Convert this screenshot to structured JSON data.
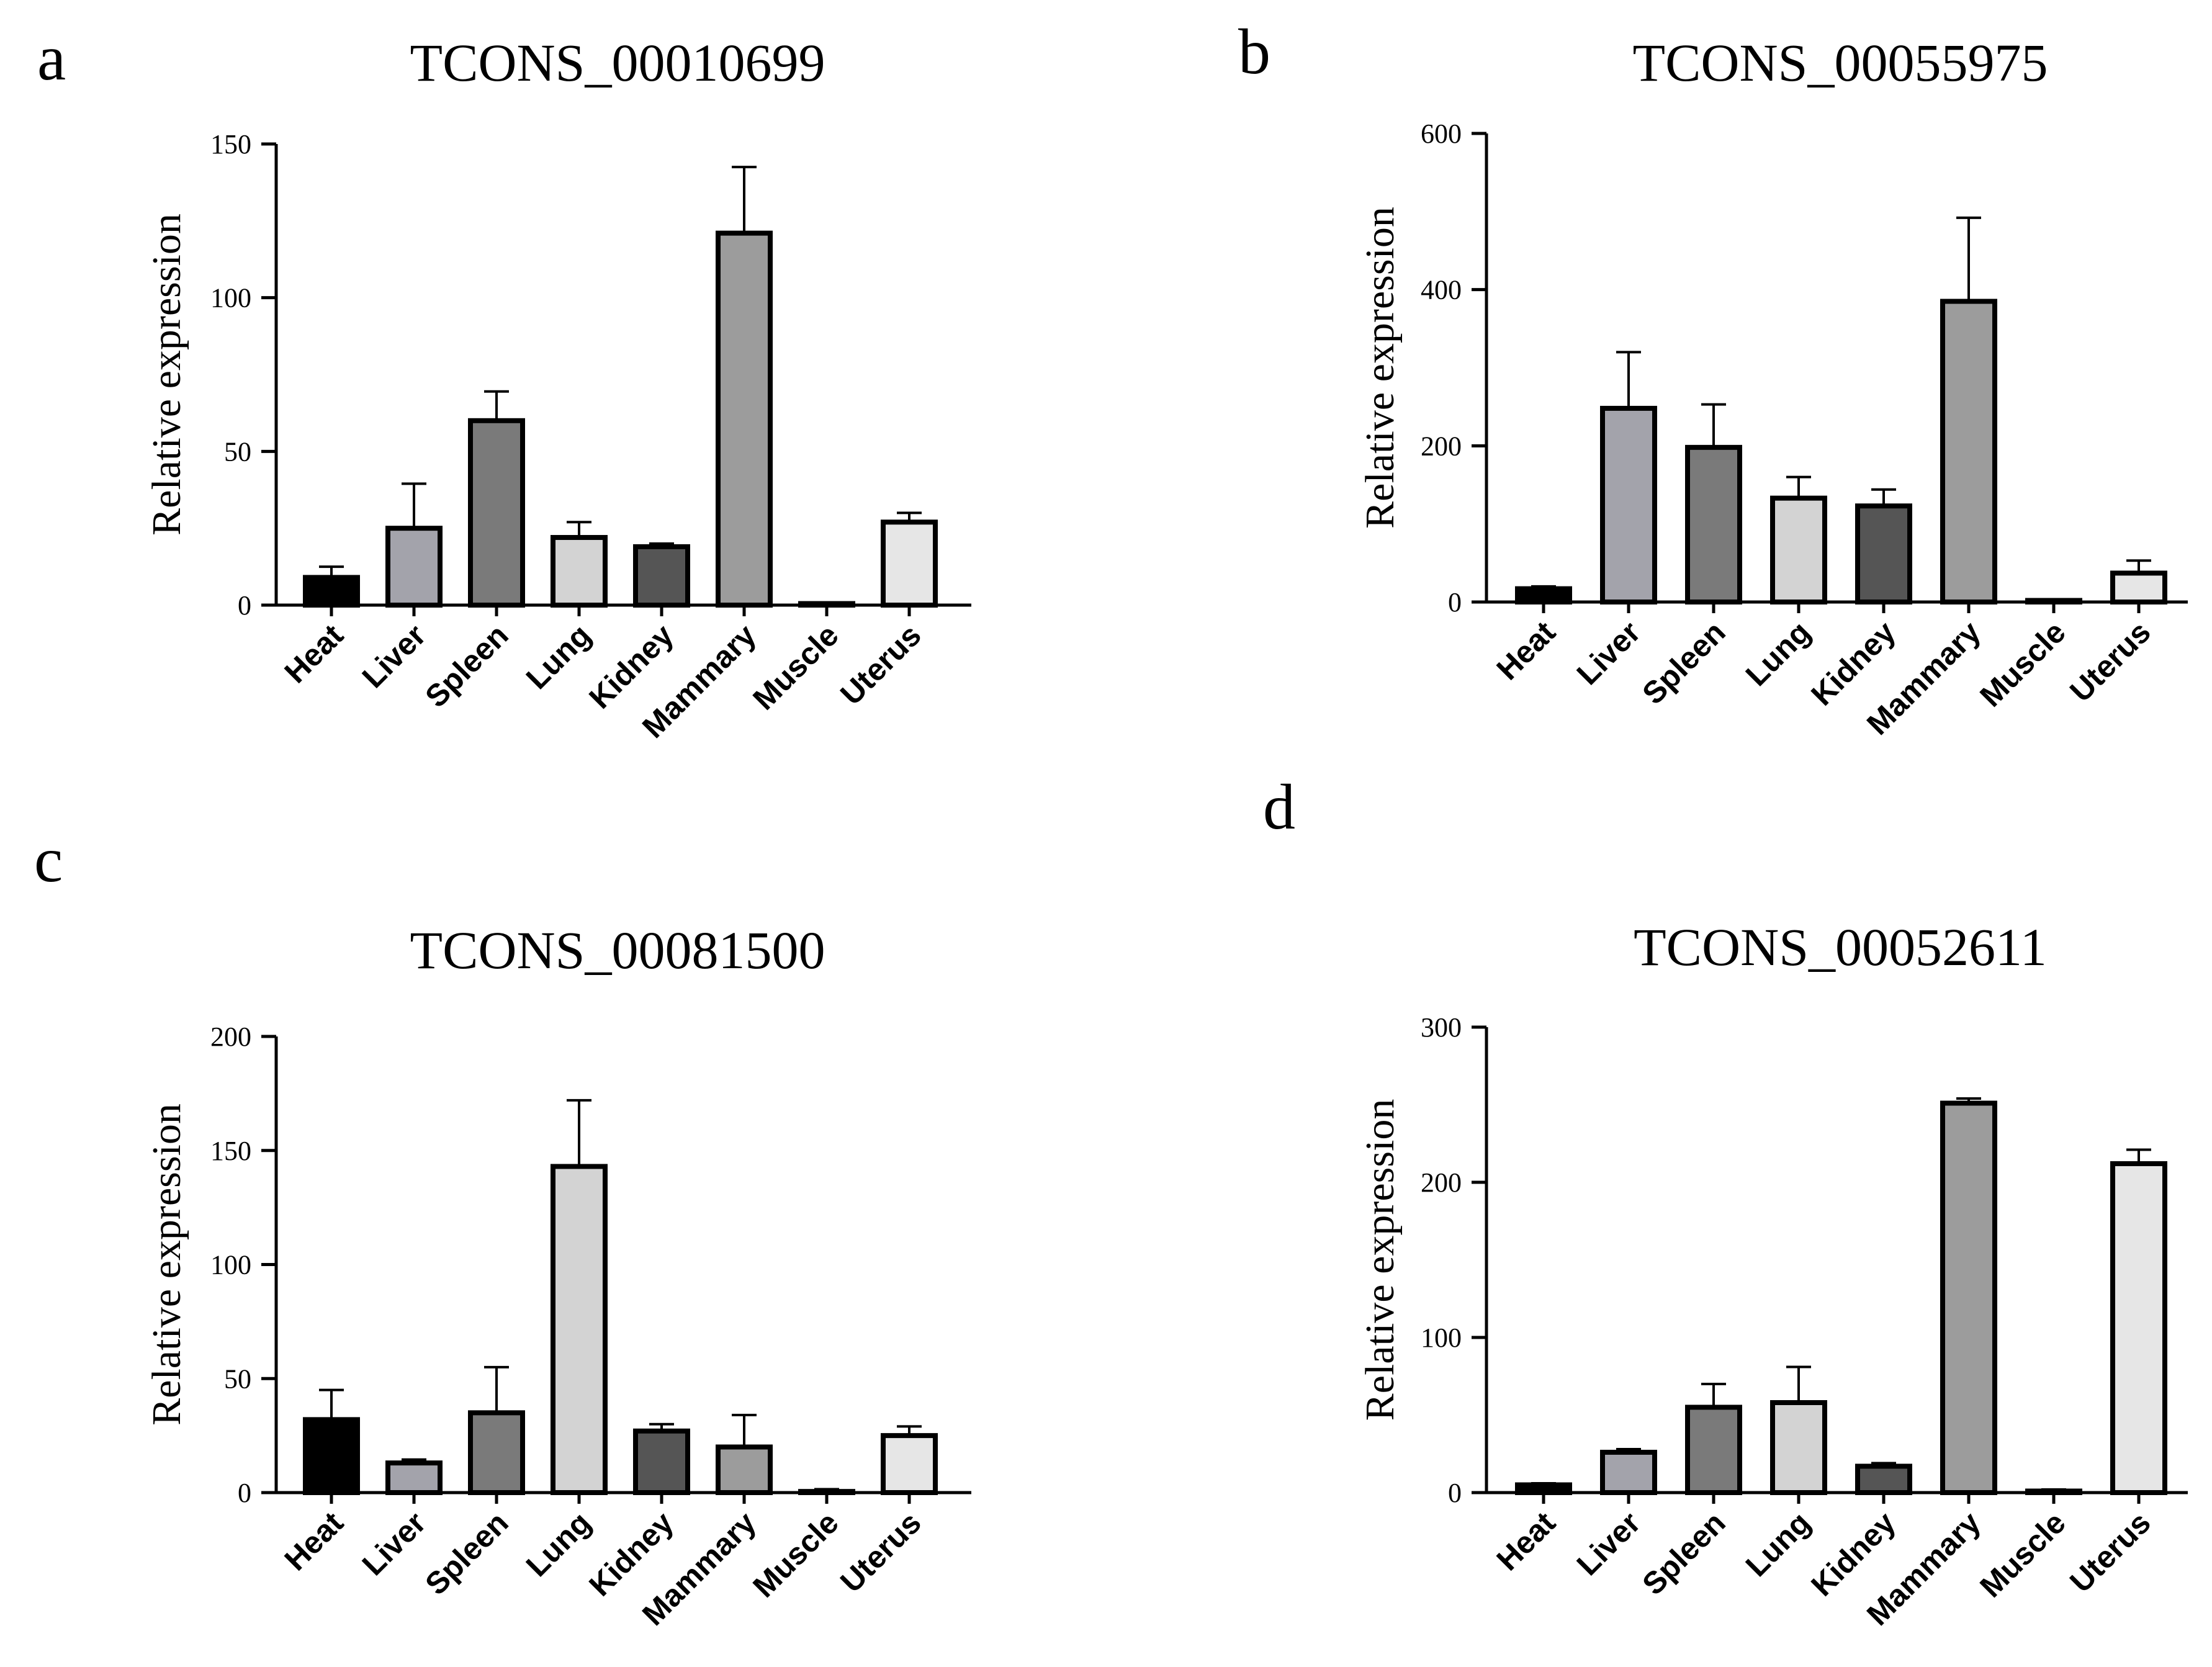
{
  "chart_data": [
    {
      "type": "bar",
      "panel": "a",
      "title": "TCONS_00010699",
      "xlabel": "",
      "ylabel": "Relative expression",
      "ylim": [
        0,
        150
      ],
      "yticks": [
        0,
        50,
        100,
        150
      ],
      "categories": [
        "Heat",
        "Liver",
        "Spleen",
        "Lung",
        "Kidney",
        "Mammary",
        "Muscle",
        "Uterus"
      ],
      "values": [
        9,
        25,
        60,
        22,
        19,
        121,
        0.5,
        27
      ],
      "errors": [
        3.5,
        14.5,
        9.5,
        5,
        1,
        21.5,
        0.3,
        3
      ]
    },
    {
      "type": "bar",
      "panel": "b",
      "title": "TCONS_00055975",
      "xlabel": "",
      "ylabel": "Relative expression",
      "ylim": [
        0,
        600
      ],
      "yticks": [
        0,
        200,
        400,
        600
      ],
      "categories": [
        "Heat",
        "Liver",
        "Spleen",
        "Lung",
        "Kidney",
        "Mammary",
        "Muscle",
        "Uterus"
      ],
      "values": [
        17,
        248,
        198,
        133,
        123,
        385,
        2,
        37
      ],
      "errors": [
        3,
        72,
        55,
        27,
        21,
        107,
        1,
        16
      ]
    },
    {
      "type": "bar",
      "panel": "c",
      "title": "TCONS_00081500",
      "xlabel": "",
      "ylabel": "Relative expression",
      "ylim": [
        0,
        200
      ],
      "yticks": [
        0,
        50,
        100,
        150,
        200
      ],
      "categories": [
        "Heat",
        "Liver",
        "Spleen",
        "Lung",
        "Kidney",
        "Mammary",
        "Muscle",
        "Uterus"
      ],
      "values": [
        32,
        13,
        35,
        143,
        27,
        20,
        0.5,
        25
      ],
      "errors": [
        13,
        1.5,
        20,
        29,
        3,
        14,
        1,
        4
      ]
    },
    {
      "type": "bar",
      "panel": "d",
      "title": "TCONS_00052611",
      "xlabel": "",
      "ylabel": "Relative expression",
      "ylim": [
        0,
        300
      ],
      "yticks": [
        0,
        100,
        200,
        300
      ],
      "categories": [
        "Heat",
        "Liver",
        "Spleen",
        "Lung",
        "Kidney",
        "Mammary",
        "Muscle",
        "Uterus"
      ],
      "values": [
        5,
        26,
        55,
        58,
        17,
        251,
        1,
        212
      ],
      "errors": [
        1,
        2,
        15,
        23,
        2,
        3,
        1,
        9
      ]
    }
  ],
  "colors": {
    "bar_fills": [
      "#000000",
      "#a3a3ab",
      "#7a7a7a",
      "#d3d3d3",
      "#555555",
      "#9c9c9c",
      "#ffffff",
      "#e6e6e6"
    ],
    "stroke": "#000000"
  }
}
